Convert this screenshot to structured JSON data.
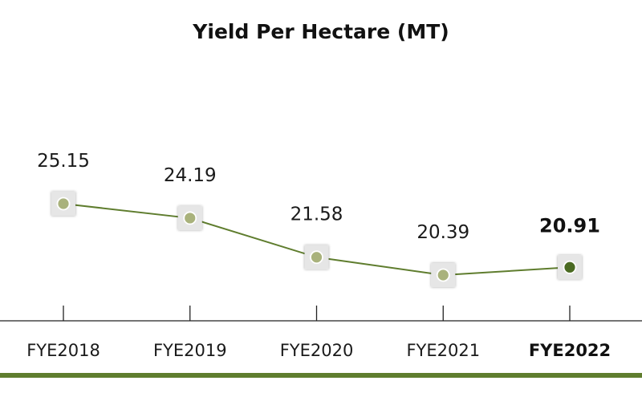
{
  "chart_data": {
    "type": "line",
    "title": "Yield Per Hectare (MT)",
    "categories": [
      "FYE2018",
      "FYE2019",
      "FYE2020",
      "FYE2021",
      "FYE2022"
    ],
    "values": [
      25.15,
      24.19,
      21.58,
      20.39,
      20.91
    ],
    "value_labels": [
      "25.15",
      "24.19",
      "21.58",
      "20.39",
      "20.91"
    ],
    "highlight_index": 4,
    "colors": {
      "line": "#5f7d2e",
      "marker": "#a9b27c",
      "marker_highlight": "#4a6a22",
      "marker_stroke": "#ffffff",
      "marker_box": "#e6e6e6",
      "axis": "#222222",
      "bottom_rule": "#5f7d2e"
    },
    "grid": false,
    "legend": "none"
  }
}
